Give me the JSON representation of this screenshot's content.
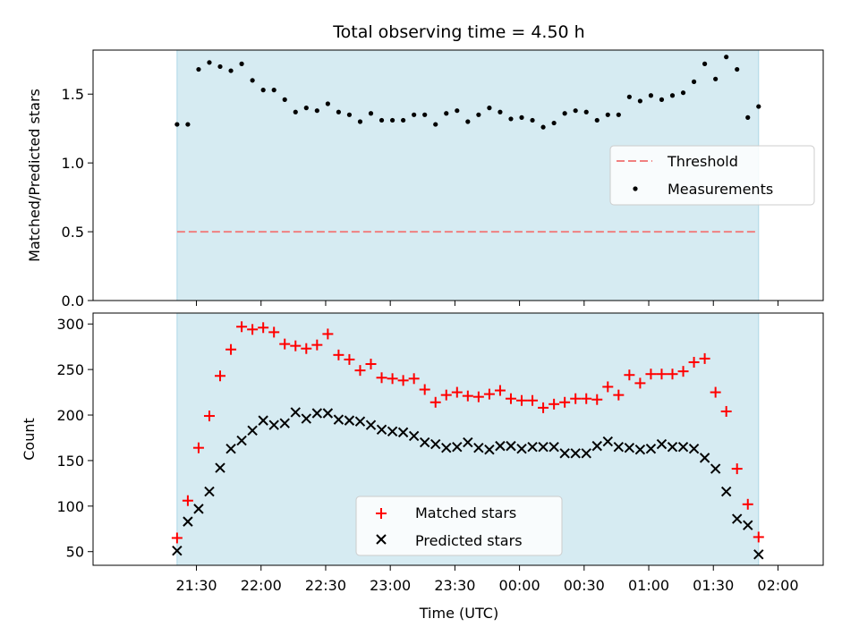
{
  "title": "Total observing time = 4.50 h",
  "chart_data": [
    {
      "type": "scatter",
      "panel": "top",
      "ylabel": "Matched/Predicted stars",
      "ylim": [
        0,
        1.82
      ],
      "yticks": [
        0.0,
        0.5,
        1.0,
        1.5
      ],
      "ytick_labels": [
        "0.0",
        "0.5",
        "1.0",
        "1.5"
      ],
      "xlim": [
        -0.65,
        5.0
      ],
      "observing_span": [
        0.0,
        4.5
      ],
      "span_color": "#add8e6",
      "threshold": {
        "name": "Threshold",
        "value": 0.5,
        "color": "#f08080"
      },
      "legend": {
        "position": "center-right",
        "entries": [
          "Threshold",
          "Measurements"
        ]
      },
      "series": [
        {
          "name": "Measurements",
          "color": "#000000",
          "x": [
            0.0,
            0.0833,
            0.1667,
            0.25,
            0.3333,
            0.4167,
            0.5,
            0.5833,
            0.6667,
            0.75,
            0.8333,
            0.9167,
            1.0,
            1.0833,
            1.1667,
            1.25,
            1.3333,
            1.4167,
            1.5,
            1.5833,
            1.6667,
            1.75,
            1.8333,
            1.9167,
            2.0,
            2.0833,
            2.1667,
            2.25,
            2.3333,
            2.4167,
            2.5,
            2.5833,
            2.6667,
            2.75,
            2.8333,
            2.9167,
            3.0,
            3.0833,
            3.1667,
            3.25,
            3.3333,
            3.4167,
            3.5,
            3.5833,
            3.6667,
            3.75,
            3.8333,
            3.9167,
            4.0,
            4.0833,
            4.1667,
            4.25,
            4.3333,
            4.4167,
            4.5
          ],
          "values": [
            1.28,
            1.28,
            1.68,
            1.73,
            1.7,
            1.67,
            1.72,
            1.6,
            1.53,
            1.53,
            1.46,
            1.37,
            1.4,
            1.38,
            1.43,
            1.37,
            1.35,
            1.3,
            1.36,
            1.31,
            1.31,
            1.31,
            1.35,
            1.35,
            1.28,
            1.36,
            1.38,
            1.3,
            1.35,
            1.4,
            1.37,
            1.32,
            1.33,
            1.31,
            1.26,
            1.29,
            1.36,
            1.38,
            1.37,
            1.31,
            1.35,
            1.35,
            1.48,
            1.45,
            1.49,
            1.46,
            1.49,
            1.51,
            1.59,
            1.72,
            1.61,
            1.77,
            1.68,
            1.33,
            1.41
          ]
        }
      ]
    },
    {
      "type": "scatter",
      "panel": "bottom",
      "xlabel": "Time (UTC)",
      "ylabel": "Count",
      "ylim": [
        35,
        312
      ],
      "yticks": [
        50,
        100,
        150,
        200,
        250,
        300
      ],
      "ytick_labels": [
        "50",
        "100",
        "150",
        "200",
        "250",
        "300"
      ],
      "xlim": [
        -0.65,
        5.0
      ],
      "xticks": [
        0.15,
        0.65,
        1.15,
        1.65,
        2.15,
        2.65,
        3.15,
        3.65,
        4.15,
        4.65
      ],
      "xtick_labels": [
        "21:30",
        "22:00",
        "22:30",
        "23:00",
        "23:30",
        "00:00",
        "00:30",
        "01:00",
        "01:30",
        "02:00"
      ],
      "observing_span": [
        0.0,
        4.5
      ],
      "span_color": "#add8e6",
      "legend": {
        "position": "bottom-center",
        "entries": [
          "Matched stars",
          "Predicted stars"
        ]
      },
      "series": [
        {
          "name": "Matched stars",
          "marker": "plus",
          "color": "#ff0000",
          "x": [
            0.0,
            0.0833,
            0.1667,
            0.25,
            0.3333,
            0.4167,
            0.5,
            0.5833,
            0.6667,
            0.75,
            0.8333,
            0.9167,
            1.0,
            1.0833,
            1.1667,
            1.25,
            1.3333,
            1.4167,
            1.5,
            1.5833,
            1.6667,
            1.75,
            1.8333,
            1.9167,
            2.0,
            2.0833,
            2.1667,
            2.25,
            2.3333,
            2.4167,
            2.5,
            2.5833,
            2.6667,
            2.75,
            2.8333,
            2.9167,
            3.0,
            3.0833,
            3.1667,
            3.25,
            3.3333,
            3.4167,
            3.5,
            3.5833,
            3.6667,
            3.75,
            3.8333,
            3.9167,
            4.0,
            4.0833,
            4.1667,
            4.25,
            4.3333,
            4.4167,
            4.5
          ],
          "values": [
            65,
            106,
            164,
            199,
            243,
            272,
            297,
            294,
            296,
            291,
            278,
            276,
            273,
            277,
            289,
            266,
            261,
            249,
            256,
            241,
            240,
            238,
            240,
            228,
            214,
            222,
            225,
            221,
            220,
            223,
            227,
            218,
            216,
            216,
            208,
            212,
            214,
            218,
            218,
            217,
            231,
            222,
            244,
            235,
            245,
            245,
            245,
            248,
            258,
            262,
            225,
            204,
            141,
            102,
            66
          ]
        },
        {
          "name": "Predicted stars",
          "marker": "x",
          "color": "#000000",
          "x": [
            0.0,
            0.0833,
            0.1667,
            0.25,
            0.3333,
            0.4167,
            0.5,
            0.5833,
            0.6667,
            0.75,
            0.8333,
            0.9167,
            1.0,
            1.0833,
            1.1667,
            1.25,
            1.3333,
            1.4167,
            1.5,
            1.5833,
            1.6667,
            1.75,
            1.8333,
            1.9167,
            2.0,
            2.0833,
            2.1667,
            2.25,
            2.3333,
            2.4167,
            2.5,
            2.5833,
            2.6667,
            2.75,
            2.8333,
            2.9167,
            3.0,
            3.0833,
            3.1667,
            3.25,
            3.3333,
            3.4167,
            3.5,
            3.5833,
            3.6667,
            3.75,
            3.8333,
            3.9167,
            4.0,
            4.0833,
            4.1667,
            4.25,
            4.3333,
            4.4167,
            4.5
          ],
          "values": [
            51,
            83,
            97,
            116,
            142,
            163,
            172,
            183,
            194,
            189,
            191,
            203,
            196,
            202,
            202,
            195,
            194,
            193,
            189,
            184,
            182,
            181,
            177,
            170,
            168,
            164,
            165,
            170,
            164,
            162,
            166,
            166,
            163,
            165,
            165,
            165,
            158,
            158,
            158,
            166,
            171,
            165,
            164,
            162,
            163,
            168,
            165,
            165,
            163,
            153,
            141,
            116,
            86,
            79,
            47
          ]
        }
      ]
    }
  ]
}
